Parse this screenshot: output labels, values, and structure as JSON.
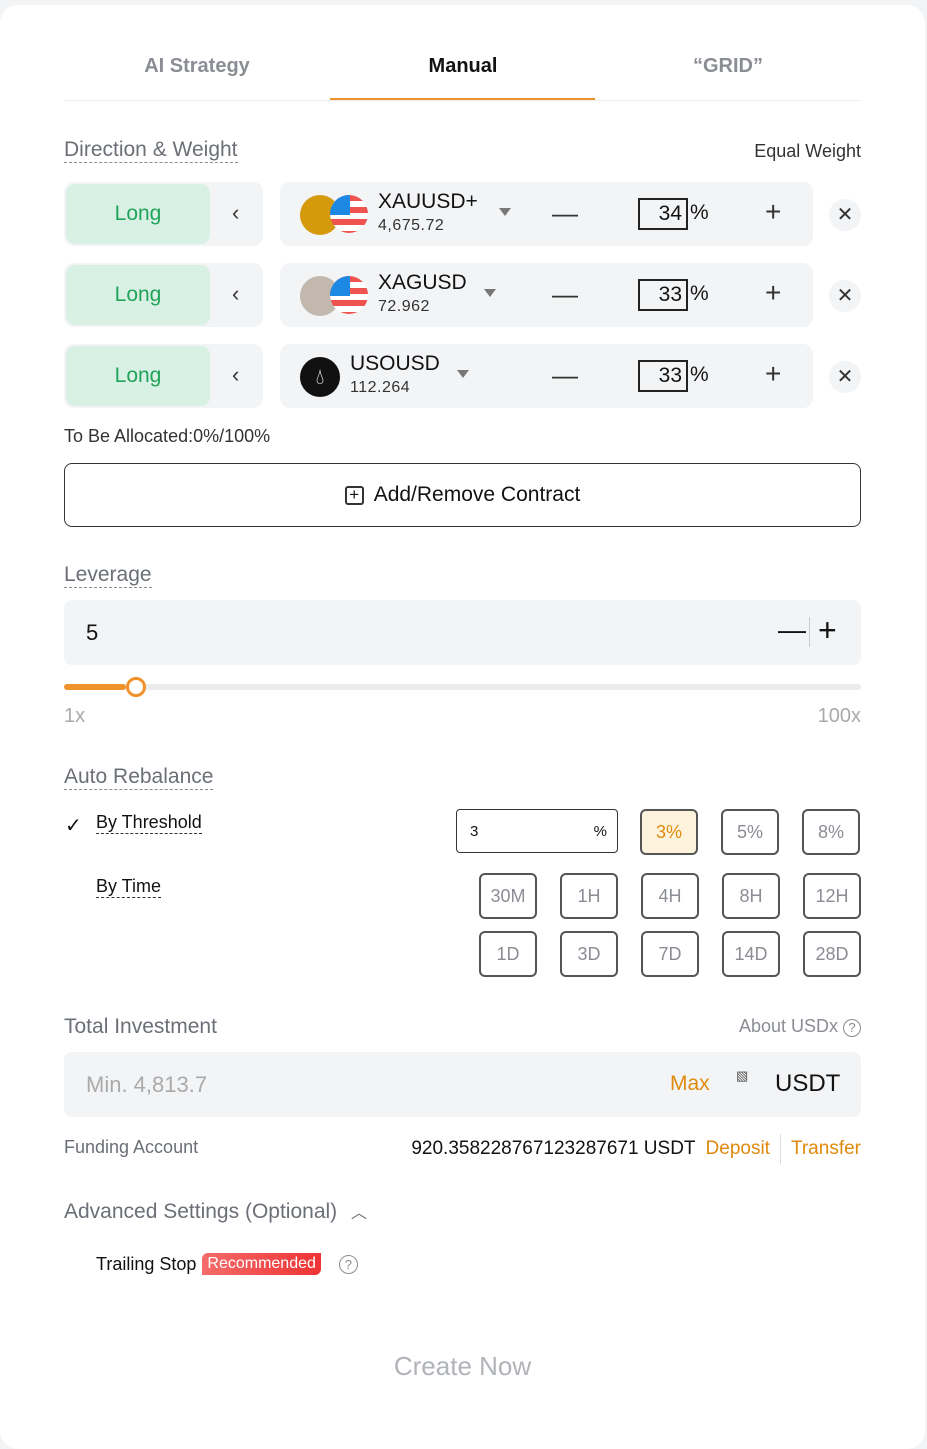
{
  "tabs": [
    {
      "label": "AI Strategy"
    },
    {
      "label": "Manual"
    },
    {
      "label": "“GRID”"
    }
  ],
  "active_tab": "Manual",
  "accent": "#f0922b",
  "direction": {
    "title": "Direction & Weight",
    "mode": "Equal Weight"
  },
  "contracts": [
    {
      "direction": "Long",
      "symbol": "XAUUSD+",
      "price": "4,675.72",
      "weight": "34",
      "icon": "gold-bars-usd-icon"
    },
    {
      "direction": "Long",
      "symbol": "XAGUSD",
      "price": "72.962",
      "weight": "33",
      "icon": "silver-bars-usd-icon"
    },
    {
      "direction": "Long",
      "symbol": "USOUSD",
      "price": "112.264",
      "weight": "33",
      "icon": "oil-drop-icon"
    }
  ],
  "percent_sign": "%",
  "allocated": "To Be Allocated:0%/100%",
  "add_remove": "Add/Remove Contract",
  "leverage": {
    "title": "Leverage",
    "value": "5",
    "min_label": "1x",
    "max_label": "100x",
    "min": 1,
    "max": 100
  },
  "rebalance": {
    "title": "Auto Rebalance",
    "threshold_label": "By Threshold",
    "threshold_checked": true,
    "threshold_value": "3",
    "threshold_unit": "%",
    "threshold_options": [
      "3%",
      "5%",
      "8%"
    ],
    "threshold_selected": "3%",
    "time_label": "By Time",
    "time_options": [
      "30M",
      "1H",
      "4H",
      "8H",
      "12H",
      "1D",
      "3D",
      "7D",
      "14D",
      "28D"
    ]
  },
  "investment": {
    "title": "Total Investment",
    "about": "About USDx",
    "placeholder": "Min. 4,813.7",
    "max": "Max",
    "currency": "USDT",
    "img_alt": "USDT"
  },
  "funding": {
    "label": "Funding Account",
    "balance": "920.35822876712328767​1 USDT",
    "deposit": "Deposit",
    "transfer": "Transfer"
  },
  "advanced": {
    "title": "Advanced Settings (Optional)",
    "trailing": "Trailing Stop",
    "badge": "Recommended"
  },
  "create": "Create Now"
}
